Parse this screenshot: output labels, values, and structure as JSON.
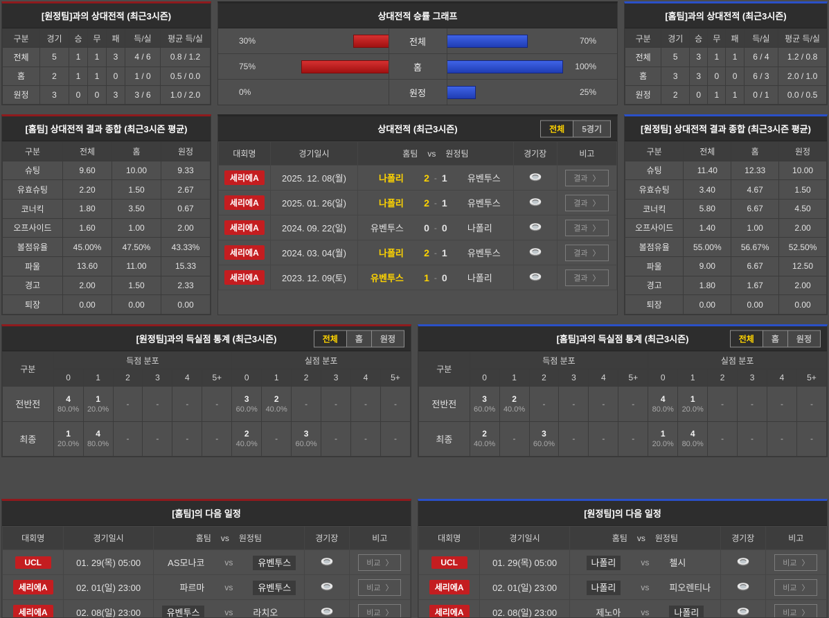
{
  "colors": {
    "accent_red": "#8f1a1d",
    "accent_blue": "#2a50c8",
    "bar_red": "#c02020",
    "bar_blue": "#2f52d4",
    "badge_red": "#c41d20",
    "highlight_yellow": "#ffd400",
    "title_bar": "#2d2d2d",
    "panel_bg": "#4f4f4f"
  },
  "vs_away_record": {
    "title": "[원정팀]과의 상대전적 (최근3시즌)",
    "headers": [
      "구분",
      "경기",
      "승",
      "무",
      "패",
      "득/실",
      "평균 득/실"
    ],
    "rows": [
      [
        "전체",
        "5",
        "1",
        "1",
        "3",
        "4 / 6",
        "0.8 / 1.2"
      ],
      [
        "홈",
        "2",
        "1",
        "1",
        "0",
        "1 / 0",
        "0.5 / 0.0"
      ],
      [
        "원정",
        "3",
        "0",
        "0",
        "3",
        "3 / 6",
        "1.0 / 2.0"
      ]
    ]
  },
  "chart_data": {
    "type": "bar",
    "title": "상대전적 승률 그래프",
    "categories": [
      "전체",
      "홈",
      "원정"
    ],
    "series": [
      {
        "name": "홈팀 승률 (좌측 적색 막대)",
        "values": [
          30,
          75,
          0
        ]
      },
      {
        "name": "원정팀 승률 (우측 청색 막대)",
        "values": [
          70,
          100,
          25
        ]
      }
    ],
    "labels_left": [
      "30%",
      "75%",
      "0%"
    ],
    "labels_right": [
      "70%",
      "100%",
      "25%"
    ],
    "xlim": [
      0,
      100
    ],
    "legend_position": "none",
    "grid": false
  },
  "vs_home_record": {
    "title": "[홈팀]과의 상대전적 (최근3시즌)",
    "headers": [
      "구분",
      "경기",
      "승",
      "무",
      "패",
      "득/실",
      "평균 득/실"
    ],
    "rows": [
      [
        "전체",
        "5",
        "3",
        "1",
        "1",
        "6 / 4",
        "1.2 / 0.8"
      ],
      [
        "홈",
        "3",
        "3",
        "0",
        "0",
        "6 / 3",
        "2.0 / 1.0"
      ],
      [
        "원정",
        "2",
        "0",
        "1",
        "1",
        "0 / 1",
        "0.0 / 0.5"
      ]
    ]
  },
  "home_result_summary": {
    "title": "[홈팀] 상대전적 결과 종합 (최근3시즌 평균)",
    "headers": [
      "구분",
      "전체",
      "홈",
      "원정"
    ],
    "rows": [
      [
        "슈팅",
        "9.60",
        "10.00",
        "9.33"
      ],
      [
        "유효슈팅",
        "2.20",
        "1.50",
        "2.67"
      ],
      [
        "코너킥",
        "1.80",
        "3.50",
        "0.67"
      ],
      [
        "오프사이드",
        "1.60",
        "1.00",
        "2.00"
      ],
      [
        "볼점유율",
        "45.00%",
        "47.50%",
        "43.33%"
      ],
      [
        "파울",
        "13.60",
        "11.00",
        "15.33"
      ],
      [
        "경고",
        "2.00",
        "1.50",
        "2.33"
      ],
      [
        "퇴장",
        "0.00",
        "0.00",
        "0.00"
      ]
    ]
  },
  "away_result_summary": {
    "title": "[원정팀] 상대전적 결과 종합 (최근3시즌 평균)",
    "headers": [
      "구분",
      "전체",
      "홈",
      "원정"
    ],
    "rows": [
      [
        "슈팅",
        "11.40",
        "12.33",
        "10.00"
      ],
      [
        "유효슈팅",
        "3.40",
        "4.67",
        "1.50"
      ],
      [
        "코너킥",
        "5.80",
        "6.67",
        "4.50"
      ],
      [
        "오프사이드",
        "1.40",
        "1.00",
        "2.00"
      ],
      [
        "볼점유율",
        "55.00%",
        "56.67%",
        "52.50%"
      ],
      [
        "파울",
        "9.00",
        "6.67",
        "12.50"
      ],
      [
        "경고",
        "1.80",
        "1.67",
        "2.00"
      ],
      [
        "퇴장",
        "0.00",
        "0.00",
        "0.00"
      ]
    ]
  },
  "h2h_list": {
    "title": "상대전적 (최근3시즌)",
    "tabs": [
      "전체",
      "5경기"
    ],
    "mode": "result",
    "headers": {
      "league": "대회명",
      "date": "경기일시",
      "home": "홈팀",
      "vs": "vs",
      "away": "원정팀",
      "stadium": "경기장",
      "note": "비고"
    },
    "button_label": "결과",
    "button_arrow": "〉",
    "rows": [
      {
        "league": "세리에A",
        "date": "2025. 12. 08(월)",
        "home": "나폴리",
        "score_home": "2",
        "dash": "-",
        "score_away": "1",
        "away": "유벤투스",
        "winner": "home"
      },
      {
        "league": "세리에A",
        "date": "2025. 01. 26(일)",
        "home": "나폴리",
        "score_home": "2",
        "dash": "-",
        "score_away": "1",
        "away": "유벤투스",
        "winner": "home"
      },
      {
        "league": "세리에A",
        "date": "2024. 09. 22(일)",
        "home": "유벤투스",
        "score_home": "0",
        "dash": "-",
        "score_away": "0",
        "away": "나폴리",
        "winner": "draw"
      },
      {
        "league": "세리에A",
        "date": "2024. 03. 04(월)",
        "home": "나폴리",
        "score_home": "2",
        "dash": "-",
        "score_away": "1",
        "away": "유벤투스",
        "winner": "home"
      },
      {
        "league": "세리에A",
        "date": "2023. 12. 09(토)",
        "home": "유벤투스",
        "score_home": "1",
        "dash": "-",
        "score_away": "0",
        "away": "나폴리",
        "winner": "home"
      }
    ]
  },
  "goal_stats_vs_away": {
    "title": "[원정팀]과의 득실점 통계 (최근3시즌)",
    "tabs": [
      "전체",
      "홈",
      "원정"
    ],
    "col_group_label": "구분",
    "group_headers": [
      "득점 분포",
      "실점 분포"
    ],
    "bins": [
      "0",
      "1",
      "2",
      "3",
      "4",
      "5+"
    ],
    "rows": [
      {
        "label": "전반전",
        "cells": [
          {
            "n": "4",
            "p": "80.0%"
          },
          {
            "n": "1",
            "p": "20.0%"
          },
          {
            "d": "-"
          },
          {
            "d": "-"
          },
          {
            "d": "-"
          },
          {
            "d": "-"
          },
          {
            "n": "3",
            "p": "60.0%"
          },
          {
            "n": "2",
            "p": "40.0%"
          },
          {
            "d": "-"
          },
          {
            "d": "-"
          },
          {
            "d": "-"
          },
          {
            "d": "-"
          }
        ]
      },
      {
        "label": "최종",
        "cells": [
          {
            "n": "1",
            "p": "20.0%"
          },
          {
            "n": "4",
            "p": "80.0%"
          },
          {
            "d": "-"
          },
          {
            "d": "-"
          },
          {
            "d": "-"
          },
          {
            "d": "-"
          },
          {
            "n": "2",
            "p": "40.0%"
          },
          {
            "d": "-"
          },
          {
            "n": "3",
            "p": "60.0%"
          },
          {
            "d": "-"
          },
          {
            "d": "-"
          },
          {
            "d": "-"
          }
        ]
      }
    ]
  },
  "goal_stats_vs_home": {
    "title": "[홈팀]과의 득실점 통계 (최근3시즌)",
    "tabs": [
      "전체",
      "홈",
      "원정"
    ],
    "col_group_label": "구분",
    "group_headers": [
      "득점 분포",
      "실점 분포"
    ],
    "bins": [
      "0",
      "1",
      "2",
      "3",
      "4",
      "5+"
    ],
    "rows": [
      {
        "label": "전반전",
        "cells": [
          {
            "n": "3",
            "p": "60.0%"
          },
          {
            "n": "2",
            "p": "40.0%"
          },
          {
            "d": "-"
          },
          {
            "d": "-"
          },
          {
            "d": "-"
          },
          {
            "d": "-"
          },
          {
            "n": "4",
            "p": "80.0%"
          },
          {
            "n": "1",
            "p": "20.0%"
          },
          {
            "d": "-"
          },
          {
            "d": "-"
          },
          {
            "d": "-"
          },
          {
            "d": "-"
          }
        ]
      },
      {
        "label": "최종",
        "cells": [
          {
            "n": "2",
            "p": "40.0%"
          },
          {
            "d": "-"
          },
          {
            "n": "3",
            "p": "60.0%"
          },
          {
            "d": "-"
          },
          {
            "d": "-"
          },
          {
            "d": "-"
          },
          {
            "n": "1",
            "p": "20.0%"
          },
          {
            "n": "4",
            "p": "80.0%"
          },
          {
            "d": "-"
          },
          {
            "d": "-"
          },
          {
            "d": "-"
          },
          {
            "d": "-"
          }
        ]
      }
    ]
  },
  "schedule_home": {
    "title": "[홈팀]의 다음 일정",
    "mode": "fixture",
    "headers": {
      "league": "대회명",
      "date": "경기일시",
      "home": "홈팀",
      "vs": "vs",
      "away": "원정팀",
      "stadium": "경기장",
      "note": "비고"
    },
    "vs_label": "vs",
    "button_label": "비교",
    "button_arrow": "〉",
    "rows": [
      {
        "league": "UCL",
        "date": "01. 29(목) 05:00",
        "home": "AS모나코",
        "away": "유벤투스",
        "highlight": "away"
      },
      {
        "league": "세리에A",
        "date": "02. 01(일) 23:00",
        "home": "파르마",
        "away": "유벤투스",
        "highlight": "away"
      },
      {
        "league": "세리에A",
        "date": "02. 08(일) 23:00",
        "home": "유벤투스",
        "away": "라치오",
        "highlight": "home"
      }
    ]
  },
  "schedule_away": {
    "title": "[원정팀]의 다음 일정",
    "mode": "fixture",
    "headers": {
      "league": "대회명",
      "date": "경기일시",
      "home": "홈팀",
      "vs": "vs",
      "away": "원정팀",
      "stadium": "경기장",
      "note": "비고"
    },
    "vs_label": "vs",
    "button_label": "비교",
    "button_arrow": "〉",
    "rows": [
      {
        "league": "UCL",
        "date": "01. 29(목) 05:00",
        "home": "나폴리",
        "away": "첼시",
        "highlight": "home"
      },
      {
        "league": "세리에A",
        "date": "02. 01(일) 23:00",
        "home": "나폴리",
        "away": "피오렌티나",
        "highlight": "home"
      },
      {
        "league": "세리에A",
        "date": "02. 08(일) 23:00",
        "home": "제노아",
        "away": "나폴리",
        "highlight": "away"
      }
    ]
  },
  "icons": {
    "stadium": "stadium-icon"
  }
}
